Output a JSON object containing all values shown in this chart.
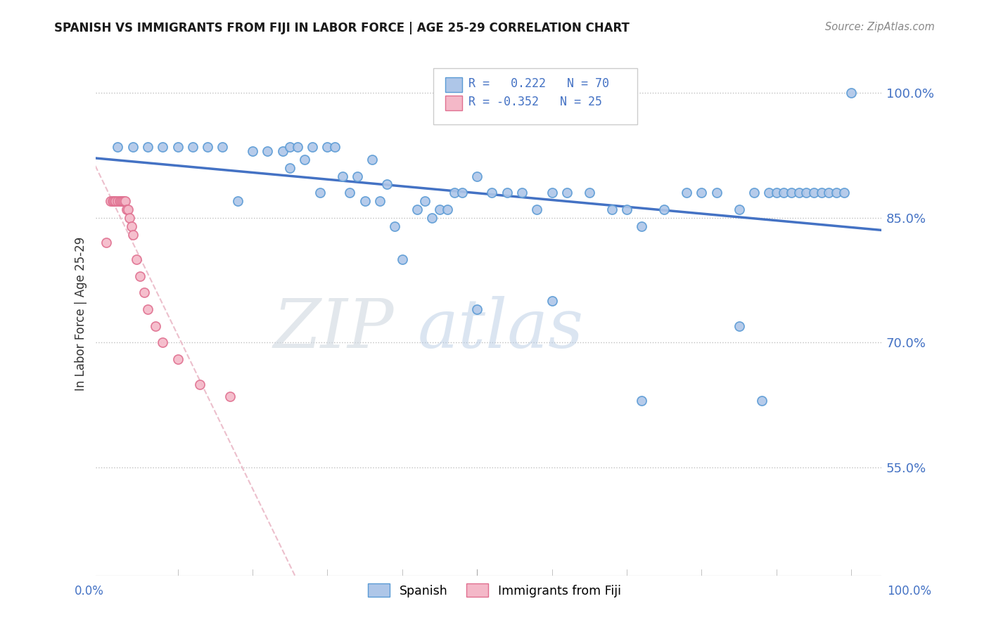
{
  "title": "SPANISH VS IMMIGRANTS FROM FIJI IN LABOR FORCE | AGE 25-29 CORRELATION CHART",
  "source": "Source: ZipAtlas.com",
  "ylabel": "In Labor Force | Age 25-29",
  "ytick_vals": [
    0.55,
    0.7,
    0.85,
    1.0
  ],
  "ylim": [
    0.42,
    1.05
  ],
  "xlim": [
    -0.01,
    1.04
  ],
  "r_blue": 0.222,
  "n_blue": 70,
  "r_pink": -0.352,
  "n_pink": 25,
  "blue_color": "#aec6e8",
  "blue_edge": "#5b9bd5",
  "pink_color": "#f4b8c8",
  "pink_edge": "#e07090",
  "trendline_blue_color": "#4472c4",
  "trendline_pink_color": "#e8b0c0",
  "watermark_zip": "#c8d8e8",
  "watermark_atlas": "#b0c8e0",
  "blue_scatter_x": [
    0.02,
    0.04,
    0.06,
    0.08,
    0.1,
    0.12,
    0.14,
    0.16,
    0.18,
    0.2,
    0.22,
    0.24,
    0.25,
    0.25,
    0.26,
    0.27,
    0.28,
    0.29,
    0.3,
    0.31,
    0.32,
    0.33,
    0.34,
    0.35,
    0.36,
    0.37,
    0.38,
    0.39,
    0.4,
    0.42,
    0.43,
    0.44,
    0.45,
    0.46,
    0.47,
    0.48,
    0.5,
    0.52,
    0.54,
    0.56,
    0.58,
    0.6,
    0.62,
    0.65,
    0.68,
    0.7,
    0.72,
    0.75,
    0.78,
    0.8,
    0.82,
    0.85,
    0.87,
    0.88,
    0.89,
    0.9,
    0.91,
    0.92,
    0.93,
    0.94,
    0.95,
    0.96,
    0.97,
    0.98,
    0.99,
    1.0,
    0.85,
    0.72,
    0.6,
    0.5
  ],
  "blue_scatter_y": [
    0.935,
    0.935,
    0.935,
    0.935,
    0.935,
    0.935,
    0.935,
    0.935,
    0.87,
    0.93,
    0.93,
    0.93,
    0.935,
    0.91,
    0.935,
    0.92,
    0.935,
    0.88,
    0.935,
    0.935,
    0.9,
    0.88,
    0.9,
    0.87,
    0.92,
    0.87,
    0.89,
    0.84,
    0.8,
    0.86,
    0.87,
    0.85,
    0.86,
    0.86,
    0.88,
    0.88,
    0.9,
    0.88,
    0.88,
    0.88,
    0.86,
    0.88,
    0.88,
    0.88,
    0.86,
    0.86,
    0.84,
    0.86,
    0.88,
    0.88,
    0.88,
    0.72,
    0.88,
    0.63,
    0.88,
    0.88,
    0.88,
    0.88,
    0.88,
    0.88,
    0.88,
    0.88,
    0.88,
    0.88,
    0.88,
    1.0,
    0.86,
    0.63,
    0.75,
    0.74
  ],
  "pink_scatter_x": [
    0.005,
    0.01,
    0.013,
    0.015,
    0.017,
    0.02,
    0.022,
    0.024,
    0.026,
    0.028,
    0.03,
    0.032,
    0.034,
    0.036,
    0.038,
    0.04,
    0.045,
    0.05,
    0.055,
    0.06,
    0.07,
    0.08,
    0.1,
    0.13,
    0.17
  ],
  "pink_scatter_y": [
    0.82,
    0.87,
    0.87,
    0.87,
    0.87,
    0.87,
    0.87,
    0.87,
    0.87,
    0.87,
    0.87,
    0.86,
    0.86,
    0.85,
    0.84,
    0.83,
    0.8,
    0.78,
    0.76,
    0.74,
    0.72,
    0.7,
    0.68,
    0.65,
    0.635
  ]
}
